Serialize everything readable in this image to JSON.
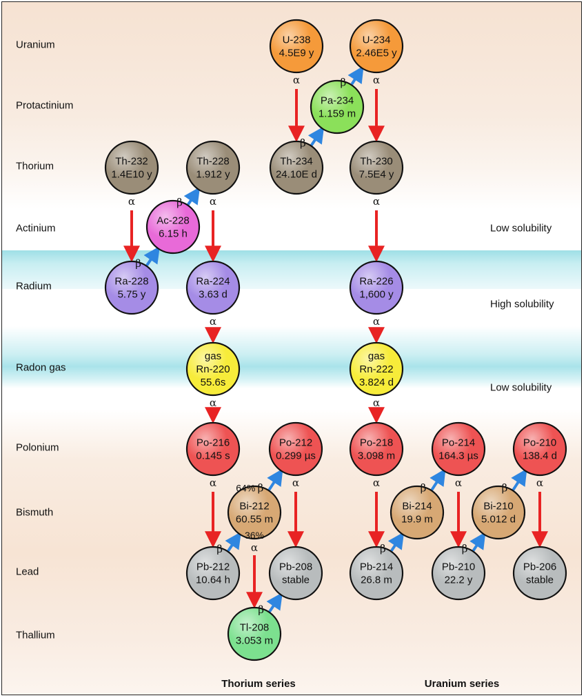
{
  "rows": [
    {
      "key": "uranium",
      "label": "Uranium"
    },
    {
      "key": "protactinium",
      "label": "Protactinium"
    },
    {
      "key": "thorium",
      "label": "Thorium"
    },
    {
      "key": "actinium",
      "label": "Actinium"
    },
    {
      "key": "radium",
      "label": "Radium"
    },
    {
      "key": "radon",
      "label": "Radon gas"
    },
    {
      "key": "polonium",
      "label": "Polonium"
    },
    {
      "key": "bismuth",
      "label": "Bismuth"
    },
    {
      "key": "lead",
      "label": "Lead"
    },
    {
      "key": "thallium",
      "label": "Thallium"
    }
  ],
  "solubility": [
    {
      "key": "actinium",
      "label": "Low solubility"
    },
    {
      "key": "radium",
      "label": "High solubility"
    },
    {
      "key": "radon",
      "label": "Low solubility"
    }
  ],
  "series": [
    {
      "key": "thorium",
      "label": "Thorium series"
    },
    {
      "key": "uranium",
      "label": "Uranium series"
    }
  ],
  "symbols": {
    "alpha": "α",
    "beta": "β"
  },
  "colors": {
    "uranium": "#f59a3a",
    "protactinium": "#8be05a",
    "thorium": "#9a8d78",
    "actinium": "#e86ad8",
    "radium": "#a58ce6",
    "radon": "#f7ec3a",
    "polonium": "#ee5353",
    "bismuth": "#d7a874",
    "lead": "#b8bcbd",
    "thallium": "#7ce08f",
    "alpha_arrow": "#e82323",
    "beta_arrow": "#2f86e0"
  },
  "nuclides": [
    {
      "id": "U-238",
      "row": "uranium",
      "half_life": "4.5E9 y"
    },
    {
      "id": "U-234",
      "row": "uranium",
      "half_life": "2.46E5 y"
    },
    {
      "id": "Pa-234",
      "row": "protactinium",
      "half_life": "1.159 m"
    },
    {
      "id": "Th-232",
      "row": "thorium",
      "half_life": "1.4E10 y"
    },
    {
      "id": "Th-228",
      "row": "thorium",
      "half_life": "1.912 y"
    },
    {
      "id": "Th-234",
      "row": "thorium",
      "half_life": "24.10E d"
    },
    {
      "id": "Th-230",
      "row": "thorium",
      "half_life": "7.5E4 y"
    },
    {
      "id": "Ac-228",
      "row": "actinium",
      "half_life": "6.15 h"
    },
    {
      "id": "Ra-228",
      "row": "radium",
      "half_life": "5.75 y"
    },
    {
      "id": "Ra-224",
      "row": "radium",
      "half_life": "3.63 d"
    },
    {
      "id": "Ra-226",
      "row": "radium",
      "half_life": "1,600 y"
    },
    {
      "id": "Rn-220",
      "row": "radon",
      "prefix": "gas",
      "half_life": "55.6s"
    },
    {
      "id": "Rn-222",
      "row": "radon",
      "prefix": "gas",
      "half_life": "3.824 d"
    },
    {
      "id": "Po-216",
      "row": "polonium",
      "half_life": "0.145 s"
    },
    {
      "id": "Po-212",
      "row": "polonium",
      "half_life": "0.299 µs"
    },
    {
      "id": "Po-218",
      "row": "polonium",
      "half_life": "3.098 m"
    },
    {
      "id": "Po-214",
      "row": "polonium",
      "half_life": "164.3 µs"
    },
    {
      "id": "Po-210",
      "row": "polonium",
      "half_life": "138.4 d"
    },
    {
      "id": "Bi-212",
      "row": "bismuth",
      "half_life": "60.55 m"
    },
    {
      "id": "Bi-214",
      "row": "bismuth",
      "half_life": "19.9 m"
    },
    {
      "id": "Bi-210",
      "row": "bismuth",
      "half_life": "5.012 d"
    },
    {
      "id": "Pb-212",
      "row": "lead",
      "half_life": "10.64 h"
    },
    {
      "id": "Pb-208",
      "row": "lead",
      "half_life": "stable"
    },
    {
      "id": "Pb-214",
      "row": "lead",
      "half_life": "26.8 m"
    },
    {
      "id": "Pb-210",
      "row": "lead",
      "half_life": "22.2 y"
    },
    {
      "id": "Pb-206",
      "row": "lead",
      "half_life": "stable"
    },
    {
      "id": "Tl-208",
      "row": "thallium",
      "half_life": "3.053 m"
    }
  ],
  "decays": [
    {
      "from": "U-238",
      "to": "Th-234",
      "type": "alpha"
    },
    {
      "from": "Th-234",
      "to": "Pa-234",
      "type": "beta"
    },
    {
      "from": "Pa-234",
      "to": "U-234",
      "type": "beta"
    },
    {
      "from": "U-234",
      "to": "Th-230",
      "type": "alpha"
    },
    {
      "from": "Th-230",
      "to": "Ra-226",
      "type": "alpha"
    },
    {
      "from": "Ra-226",
      "to": "Rn-222",
      "type": "alpha"
    },
    {
      "from": "Rn-222",
      "to": "Po-218",
      "type": "alpha"
    },
    {
      "from": "Po-218",
      "to": "Pb-214",
      "type": "alpha"
    },
    {
      "from": "Pb-214",
      "to": "Bi-214",
      "type": "beta"
    },
    {
      "from": "Bi-214",
      "to": "Po-214",
      "type": "beta"
    },
    {
      "from": "Po-214",
      "to": "Pb-210",
      "type": "alpha"
    },
    {
      "from": "Pb-210",
      "to": "Bi-210",
      "type": "beta"
    },
    {
      "from": "Bi-210",
      "to": "Po-210",
      "type": "beta"
    },
    {
      "from": "Po-210",
      "to": "Pb-206",
      "type": "alpha"
    },
    {
      "from": "Th-232",
      "to": "Ra-228",
      "type": "alpha"
    },
    {
      "from": "Ra-228",
      "to": "Ac-228",
      "type": "beta"
    },
    {
      "from": "Ac-228",
      "to": "Th-228",
      "type": "beta"
    },
    {
      "from": "Th-228",
      "to": "Ra-224",
      "type": "alpha"
    },
    {
      "from": "Ra-224",
      "to": "Rn-220",
      "type": "alpha"
    },
    {
      "from": "Rn-220",
      "to": "Po-216",
      "type": "alpha"
    },
    {
      "from": "Po-216",
      "to": "Pb-212",
      "type": "alpha"
    },
    {
      "from": "Pb-212",
      "to": "Bi-212",
      "type": "beta"
    },
    {
      "from": "Bi-212",
      "to": "Po-212",
      "type": "beta",
      "fraction": "64%"
    },
    {
      "from": "Po-212",
      "to": "Pb-208",
      "type": "alpha"
    },
    {
      "from": "Bi-212",
      "to": "Tl-208",
      "type": "alpha",
      "fraction": "36%"
    },
    {
      "from": "Tl-208",
      "to": "Pb-208",
      "type": "beta"
    }
  ]
}
